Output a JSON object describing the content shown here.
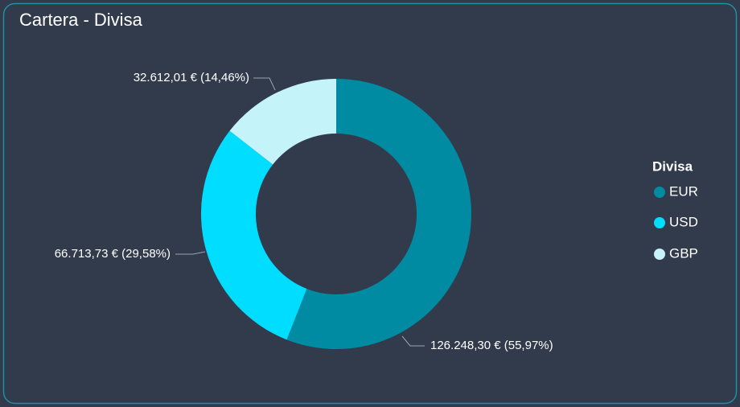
{
  "chart_data": {
    "type": "donut",
    "title": "Cartera - Divisa",
    "categories": [
      "EUR",
      "USD",
      "GBP"
    ],
    "values": [
      126248.3,
      66713.73,
      32612.01
    ],
    "value_labels": [
      "126.248,30 € (55,97%)",
      "66.713,73 € (29,58%)",
      "32.612,01 € (14,46%)"
    ],
    "colors": [
      "#008ba3",
      "#00ddff",
      "#c5f3fa"
    ],
    "legend_title": "Divisa"
  }
}
